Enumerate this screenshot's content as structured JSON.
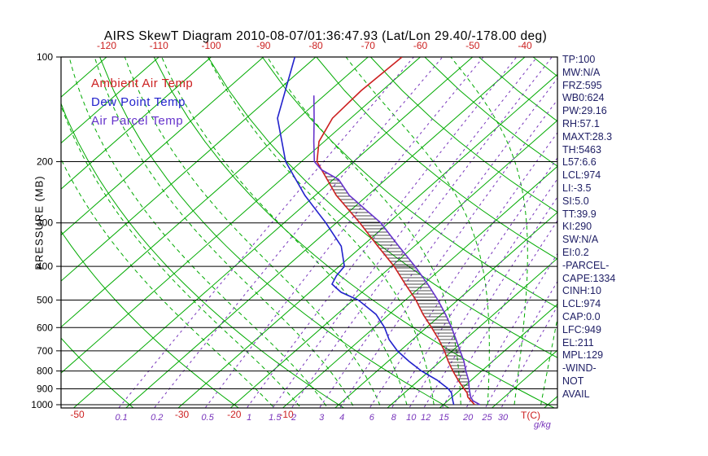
{
  "title": "AIRS SkewT Diagram 2010-08-07/01:36:47.93 (Lat/Lon 29.40/-178.00 deg)",
  "colors": {
    "grid_green": "#00aa00",
    "temp_red": "#cc2020",
    "dew_blue": "#2222cc",
    "parcel_purple": "#6633cc",
    "mixing_purple": "#7733bb",
    "isobar_black": "#000000",
    "stats_text": "#202066",
    "hatch": "#111111"
  },
  "stats": {
    "lines": [
      "TP:100",
      "MW:N/A",
      "FRZ:595",
      "WB0:624",
      "PW:29.16",
      "RH:57.1",
      "MAXT:28.3",
      "TH:5463",
      "L57:6.6",
      "LCL:974",
      "LI:-3.5",
      "SI:5.0",
      "TT:39.9",
      "KI:290",
      "SW:N/A",
      "EI:0.2",
      "-PARCEL-",
      "CAPE:1334",
      "CINH:10",
      "LCL:974",
      "CAP:0.0",
      "LFC:949",
      "EL:211",
      "MPL:129",
      "-WIND-",
      "NOT",
      "AVAIL"
    ]
  },
  "chart_data": {
    "type": "line",
    "variant": "skew-t-log-p",
    "x_axis": {
      "unit": "T(C)",
      "top_ticks": [
        -120,
        -110,
        -100,
        -90,
        -80,
        -70,
        -60,
        -50,
        -40
      ],
      "bottom_ticks": [
        -50,
        -30,
        -20,
        -10
      ],
      "isotherm_range": [
        -120,
        40
      ],
      "isotherm_step": 10
    },
    "y_axis": {
      "label": "PRESSURE (MB)",
      "scale": "log",
      "ticks": [
        100,
        200,
        300,
        400,
        500,
        600,
        700,
        800,
        900,
        1000
      ],
      "range": [
        100,
        1050
      ]
    },
    "mixing_ratio": {
      "unit": "g/kg",
      "values": [
        0.1,
        0.2,
        0.5,
        1,
        1.5,
        2,
        3,
        4,
        6,
        8,
        10,
        12,
        15,
        20,
        25,
        30
      ]
    },
    "series": [
      {
        "name": "Ambient Air Temp",
        "color": "#cc2020",
        "points": [
          [
            1000,
            26
          ],
          [
            975,
            24.5
          ],
          [
            950,
            23
          ],
          [
            925,
            22
          ],
          [
            900,
            20.5
          ],
          [
            850,
            17.5
          ],
          [
            800,
            14.5
          ],
          [
            750,
            11.5
          ],
          [
            700,
            8.5
          ],
          [
            650,
            5
          ],
          [
            600,
            1
          ],
          [
            550,
            -3.5
          ],
          [
            500,
            -8
          ],
          [
            450,
            -13.5
          ],
          [
            400,
            -19.5
          ],
          [
            350,
            -27
          ],
          [
            300,
            -35.5
          ],
          [
            250,
            -46
          ],
          [
            200,
            -57
          ],
          [
            175,
            -61
          ],
          [
            150,
            -63.5
          ],
          [
            125,
            -64
          ],
          [
            100,
            -63.5
          ]
        ]
      },
      {
        "name": "Dew Point Temp",
        "color": "#2222cc",
        "points": [
          [
            1000,
            22
          ],
          [
            975,
            21
          ],
          [
            950,
            20
          ],
          [
            925,
            19
          ],
          [
            900,
            17.5
          ],
          [
            850,
            13.5
          ],
          [
            800,
            8.5
          ],
          [
            750,
            4
          ],
          [
            700,
            -0.5
          ],
          [
            650,
            -4.5
          ],
          [
            600,
            -8
          ],
          [
            550,
            -12.5
          ],
          [
            500,
            -19
          ],
          [
            475,
            -24
          ],
          [
            450,
            -27.5
          ],
          [
            425,
            -28.5
          ],
          [
            400,
            -29
          ],
          [
            350,
            -34
          ],
          [
            300,
            -42
          ],
          [
            250,
            -52
          ],
          [
            200,
            -63
          ],
          [
            150,
            -74
          ],
          [
            100,
            -84
          ]
        ]
      },
      {
        "name": "Air Parcel Temp",
        "color": "#6633cc",
        "points": [
          [
            1000,
            27
          ],
          [
            974,
            24.8
          ],
          [
            949,
            23.5
          ],
          [
            900,
            21.5
          ],
          [
            850,
            19.5
          ],
          [
            800,
            17
          ],
          [
            750,
            14.5
          ],
          [
            700,
            11.5
          ],
          [
            650,
            8.3
          ],
          [
            600,
            4.8
          ],
          [
            550,
            0.8
          ],
          [
            500,
            -3.8
          ],
          [
            450,
            -9.2
          ],
          [
            400,
            -15.5
          ],
          [
            350,
            -23
          ],
          [
            300,
            -31.5
          ],
          [
            250,
            -43.5
          ],
          [
            225,
            -49
          ],
          [
            211,
            -54.4
          ],
          [
            200,
            -57.5
          ],
          [
            175,
            -62
          ],
          [
            150,
            -67
          ],
          [
            129,
            -72
          ]
        ]
      }
    ],
    "hatch": {
      "between": [
        "Air Parcel Temp",
        "Ambient Air Temp"
      ],
      "pressure_range": [
        211,
        1000
      ]
    }
  }
}
